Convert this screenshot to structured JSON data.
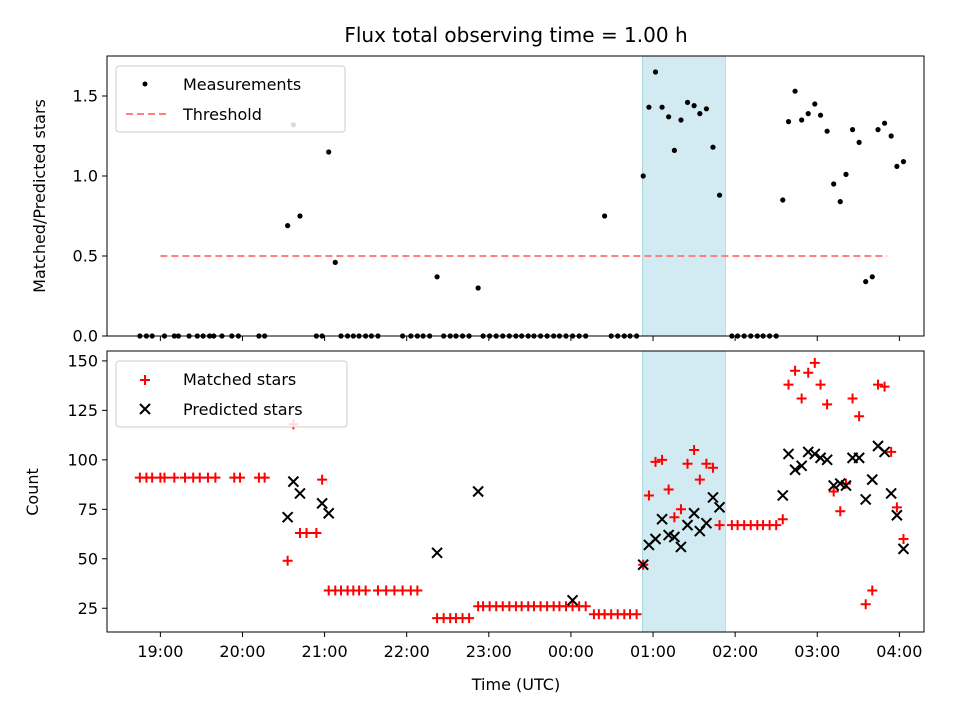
{
  "chart_data": [
    {
      "type": "scatter",
      "title": "Flux total observing time = 1.00 h",
      "xlabel": "",
      "ylabel": "Matched/Predicted stars",
      "xlim": [
        -0.65,
        9.3
      ],
      "ylim": [
        0,
        1.75
      ],
      "yticks": [
        0,
        0.5,
        1.0,
        1.5
      ],
      "ytick_labels": [
        "0.0",
        "0.5",
        "1.0",
        "1.5"
      ],
      "highlight_span": [
        5.87,
        6.88
      ],
      "threshold": {
        "name": "Threshold",
        "value": 0.5,
        "x": [
          0.0,
          8.85
        ],
        "color": "#ff8080"
      },
      "legend": {
        "position": "upper-left",
        "entries": [
          "Measurements",
          "Threshold"
        ]
      },
      "series": [
        {
          "name": "Measurements",
          "marker": "dot",
          "color": "#000000",
          "points": [
            [
              -0.25,
              0
            ],
            [
              -0.17,
              0
            ],
            [
              -0.1,
              0
            ],
            [
              0.05,
              0
            ],
            [
              0.17,
              0
            ],
            [
              0.22,
              0
            ],
            [
              0.35,
              0
            ],
            [
              0.45,
              0
            ],
            [
              0.52,
              0
            ],
            [
              0.6,
              0
            ],
            [
              0.65,
              0
            ],
            [
              0.75,
              0
            ],
            [
              0.87,
              0
            ],
            [
              0.95,
              0
            ],
            [
              1.2,
              0
            ],
            [
              1.27,
              0
            ],
            [
              1.55,
              0.69
            ],
            [
              1.62,
              1.32
            ],
            [
              1.7,
              0.75
            ],
            [
              1.9,
              0
            ],
            [
              1.97,
              0
            ],
            [
              2.05,
              1.15
            ],
            [
              2.13,
              0.46
            ],
            [
              2.2,
              0
            ],
            [
              2.28,
              0
            ],
            [
              2.35,
              0
            ],
            [
              2.42,
              0
            ],
            [
              2.5,
              0
            ],
            [
              2.57,
              0
            ],
            [
              2.65,
              0
            ],
            [
              2.95,
              0
            ],
            [
              3.05,
              0
            ],
            [
              3.13,
              0
            ],
            [
              3.2,
              0
            ],
            [
              3.28,
              0
            ],
            [
              3.37,
              0.37
            ],
            [
              3.45,
              0
            ],
            [
              3.53,
              0
            ],
            [
              3.6,
              0
            ],
            [
              3.68,
              0
            ],
            [
              3.76,
              0
            ],
            [
              3.87,
              0.3
            ],
            [
              3.93,
              0
            ],
            [
              4.01,
              0
            ],
            [
              4.09,
              0
            ],
            [
              4.17,
              0
            ],
            [
              4.25,
              0
            ],
            [
              4.33,
              0
            ],
            [
              4.4,
              0
            ],
            [
              4.48,
              0
            ],
            [
              4.55,
              0
            ],
            [
              4.63,
              0
            ],
            [
              4.71,
              0
            ],
            [
              4.79,
              0
            ],
            [
              4.86,
              0
            ],
            [
              4.94,
              0
            ],
            [
              5.02,
              0
            ],
            [
              5.1,
              0
            ],
            [
              5.18,
              0
            ],
            [
              5.41,
              0.75
            ],
            [
              5.49,
              0
            ],
            [
              5.57,
              0
            ],
            [
              5.65,
              0
            ],
            [
              5.72,
              0
            ],
            [
              5.8,
              0
            ],
            [
              5.88,
              1.0
            ],
            [
              5.95,
              1.43
            ],
            [
              6.03,
              1.65
            ],
            [
              6.11,
              1.43
            ],
            [
              6.19,
              1.37
            ],
            [
              6.26,
              1.16
            ],
            [
              6.34,
              1.35
            ],
            [
              6.42,
              1.46
            ],
            [
              6.5,
              1.44
            ],
            [
              6.57,
              1.39
            ],
            [
              6.65,
              1.42
            ],
            [
              6.73,
              1.18
            ],
            [
              6.81,
              0.88
            ],
            [
              6.96,
              0
            ],
            [
              7.03,
              0
            ],
            [
              7.11,
              0
            ],
            [
              7.19,
              0
            ],
            [
              7.27,
              0
            ],
            [
              7.34,
              0
            ],
            [
              7.42,
              0
            ],
            [
              7.5,
              0
            ],
            [
              7.58,
              0.85
            ],
            [
              7.65,
              1.34
            ],
            [
              7.73,
              1.53
            ],
            [
              7.81,
              1.35
            ],
            [
              7.89,
              1.39
            ],
            [
              7.97,
              1.45
            ],
            [
              8.04,
              1.38
            ],
            [
              8.12,
              1.28
            ],
            [
              8.2,
              0.95
            ],
            [
              8.28,
              0.84
            ],
            [
              8.35,
              1.01
            ],
            [
              8.43,
              1.29
            ],
            [
              8.51,
              1.21
            ],
            [
              8.59,
              0.34
            ],
            [
              8.67,
              0.37
            ],
            [
              8.74,
              1.29
            ],
            [
              8.82,
              1.33
            ],
            [
              8.9,
              1.25
            ],
            [
              8.97,
              1.06
            ],
            [
              9.05,
              1.09
            ]
          ]
        }
      ]
    },
    {
      "type": "scatter",
      "title": "",
      "xlabel": "Time (UTC)",
      "ylabel": "Count",
      "xlim": [
        -0.65,
        9.3
      ],
      "ylim": [
        13,
        155
      ],
      "yticks": [
        25,
        50,
        75,
        100,
        125,
        150
      ],
      "ytick_labels": [
        "25",
        "50",
        "75",
        "100",
        "125",
        "150"
      ],
      "xticks": [
        0,
        1,
        2,
        3,
        4,
        5,
        6,
        7,
        8,
        9
      ],
      "xtick_labels": [
        "19:00",
        "20:00",
        "21:00",
        "22:00",
        "23:00",
        "00:00",
        "01:00",
        "02:00",
        "03:00",
        "04:00"
      ],
      "highlight_span": [
        5.87,
        6.88
      ],
      "legend": {
        "position": "upper-left",
        "entries": [
          "Matched stars",
          "Predicted stars"
        ]
      },
      "series": [
        {
          "name": "Matched stars",
          "marker": "plus",
          "color": "#ff0000",
          "points": [
            [
              -0.25,
              91
            ],
            [
              -0.17,
              91
            ],
            [
              -0.1,
              91
            ],
            [
              0.0,
              91
            ],
            [
              0.05,
              91
            ],
            [
              0.17,
              91
            ],
            [
              0.3,
              91
            ],
            [
              0.4,
              91
            ],
            [
              0.48,
              91
            ],
            [
              0.58,
              91
            ],
            [
              0.67,
              91
            ],
            [
              0.9,
              91
            ],
            [
              0.97,
              91
            ],
            [
              1.2,
              91
            ],
            [
              1.27,
              91
            ],
            [
              1.55,
              49
            ],
            [
              1.62,
              118
            ],
            [
              1.7,
              63
            ],
            [
              1.78,
              63
            ],
            [
              1.9,
              63
            ],
            [
              1.97,
              90
            ],
            [
              2.05,
              34
            ],
            [
              2.13,
              34
            ],
            [
              2.2,
              34
            ],
            [
              2.28,
              34
            ],
            [
              2.35,
              34
            ],
            [
              2.42,
              34
            ],
            [
              2.5,
              34
            ],
            [
              2.65,
              34
            ],
            [
              2.75,
              34
            ],
            [
              2.85,
              34
            ],
            [
              2.95,
              34
            ],
            [
              3.05,
              34
            ],
            [
              3.13,
              34
            ],
            [
              3.37,
              20
            ],
            [
              3.45,
              20
            ],
            [
              3.53,
              20
            ],
            [
              3.6,
              20
            ],
            [
              3.68,
              20
            ],
            [
              3.76,
              20
            ],
            [
              3.87,
              26
            ],
            [
              3.93,
              26
            ],
            [
              4.01,
              26
            ],
            [
              4.09,
              26
            ],
            [
              4.17,
              26
            ],
            [
              4.25,
              26
            ],
            [
              4.33,
              26
            ],
            [
              4.4,
              26
            ],
            [
              4.48,
              26
            ],
            [
              4.55,
              26
            ],
            [
              4.63,
              26
            ],
            [
              4.71,
              26
            ],
            [
              4.79,
              26
            ],
            [
              4.86,
              26
            ],
            [
              4.94,
              26
            ],
            [
              5.02,
              26
            ],
            [
              5.1,
              26
            ],
            [
              5.18,
              26
            ],
            [
              5.28,
              22
            ],
            [
              5.34,
              22
            ],
            [
              5.41,
              22
            ],
            [
              5.49,
              22
            ],
            [
              5.57,
              22
            ],
            [
              5.65,
              22
            ],
            [
              5.72,
              22
            ],
            [
              5.8,
              22
            ],
            [
              5.88,
              47
            ],
            [
              5.95,
              82
            ],
            [
              6.03,
              99
            ],
            [
              6.11,
              100
            ],
            [
              6.19,
              85
            ],
            [
              6.26,
              71
            ],
            [
              6.34,
              75
            ],
            [
              6.42,
              98
            ],
            [
              6.5,
              105
            ],
            [
              6.57,
              90
            ],
            [
              6.65,
              98
            ],
            [
              6.73,
              96
            ],
            [
              6.81,
              67
            ],
            [
              6.96,
              67
            ],
            [
              7.03,
              67
            ],
            [
              7.11,
              67
            ],
            [
              7.19,
              67
            ],
            [
              7.27,
              67
            ],
            [
              7.34,
              67
            ],
            [
              7.42,
              67
            ],
            [
              7.5,
              67
            ],
            [
              7.58,
              70
            ],
            [
              7.65,
              138
            ],
            [
              7.73,
              145
            ],
            [
              7.81,
              131
            ],
            [
              7.89,
              144
            ],
            [
              7.97,
              149
            ],
            [
              8.04,
              138
            ],
            [
              8.12,
              128
            ],
            [
              8.2,
              84
            ],
            [
              8.28,
              74
            ],
            [
              8.35,
              88
            ],
            [
              8.43,
              131
            ],
            [
              8.51,
              122
            ],
            [
              8.59,
              27
            ],
            [
              8.67,
              34
            ],
            [
              8.74,
              138
            ],
            [
              8.82,
              137
            ],
            [
              8.9,
              104
            ],
            [
              8.97,
              76
            ],
            [
              9.05,
              60
            ]
          ]
        },
        {
          "name": "Predicted stars",
          "marker": "x",
          "color": "#000000",
          "points": [
            [
              1.55,
              71
            ],
            [
              1.62,
              89
            ],
            [
              1.7,
              83
            ],
            [
              1.97,
              78
            ],
            [
              2.05,
              73
            ],
            [
              3.37,
              53
            ],
            [
              3.87,
              84
            ],
            [
              5.02,
              29
            ],
            [
              5.88,
              47
            ],
            [
              5.95,
              57
            ],
            [
              6.03,
              60
            ],
            [
              6.11,
              70
            ],
            [
              6.19,
              62
            ],
            [
              6.26,
              61
            ],
            [
              6.34,
              56
            ],
            [
              6.42,
              67
            ],
            [
              6.5,
              73
            ],
            [
              6.57,
              64
            ],
            [
              6.65,
              68
            ],
            [
              6.73,
              81
            ],
            [
              6.81,
              76
            ],
            [
              7.58,
              82
            ],
            [
              7.65,
              103
            ],
            [
              7.73,
              95
            ],
            [
              7.81,
              97
            ],
            [
              7.89,
              104
            ],
            [
              7.97,
              103
            ],
            [
              8.04,
              101
            ],
            [
              8.12,
              100
            ],
            [
              8.2,
              87
            ],
            [
              8.28,
              88
            ],
            [
              8.35,
              87
            ],
            [
              8.43,
              101
            ],
            [
              8.51,
              101
            ],
            [
              8.59,
              80
            ],
            [
              8.67,
              90
            ],
            [
              8.74,
              107
            ],
            [
              8.82,
              104
            ],
            [
              8.9,
              83
            ],
            [
              8.97,
              72
            ],
            [
              9.05,
              55
            ]
          ]
        }
      ]
    }
  ]
}
